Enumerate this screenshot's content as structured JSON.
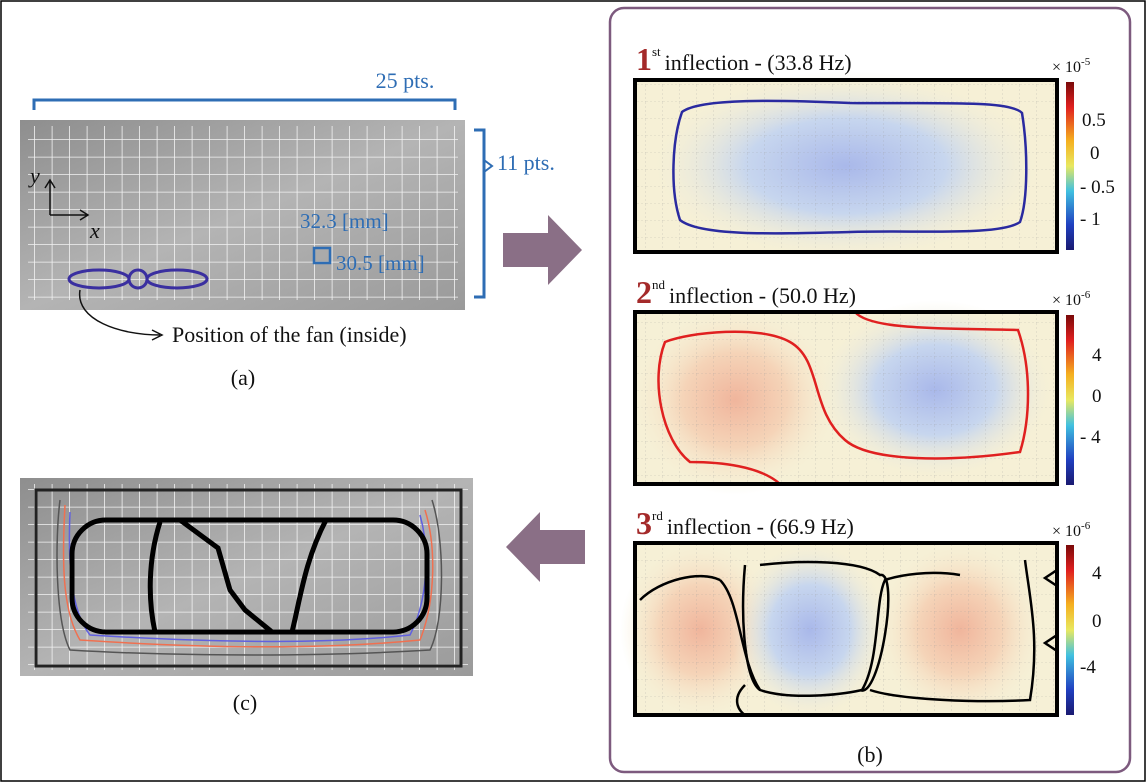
{
  "panel_a": {
    "pts_x": "25 pts.",
    "pts_y": "11 pts.",
    "axis_y": "y",
    "axis_x": "x",
    "cell_width": "32.3 [mm]",
    "cell_height": "30.5 [mm]",
    "fan_note": "Position of the fan (inside)",
    "label": "(a)"
  },
  "panel_b": {
    "modes": [
      {
        "number": "1",
        "ordinal": "st",
        "title": "inflection  - (33.8 Hz)",
        "scale_base": "× 10",
        "scale_exp": "-5",
        "colorbar_ticks": [
          "0.5",
          "0",
          "- 0.5",
          "- 1"
        ]
      },
      {
        "number": "2",
        "ordinal": "nd",
        "title": "inflection  - (50.0 Hz)",
        "scale_base": "× 10",
        "scale_exp": "-6",
        "colorbar_ticks": [
          "4",
          "0",
          "- 4"
        ]
      },
      {
        "number": "3",
        "ordinal": "rd",
        "title": "inflection  - (66.9 Hz)",
        "scale_base": "× 10",
        "scale_exp": "-6",
        "colorbar_ticks": [
          "4",
          "0",
          "-4"
        ]
      }
    ],
    "label": "(b)"
  },
  "panel_c": {
    "label": "(c)"
  }
}
